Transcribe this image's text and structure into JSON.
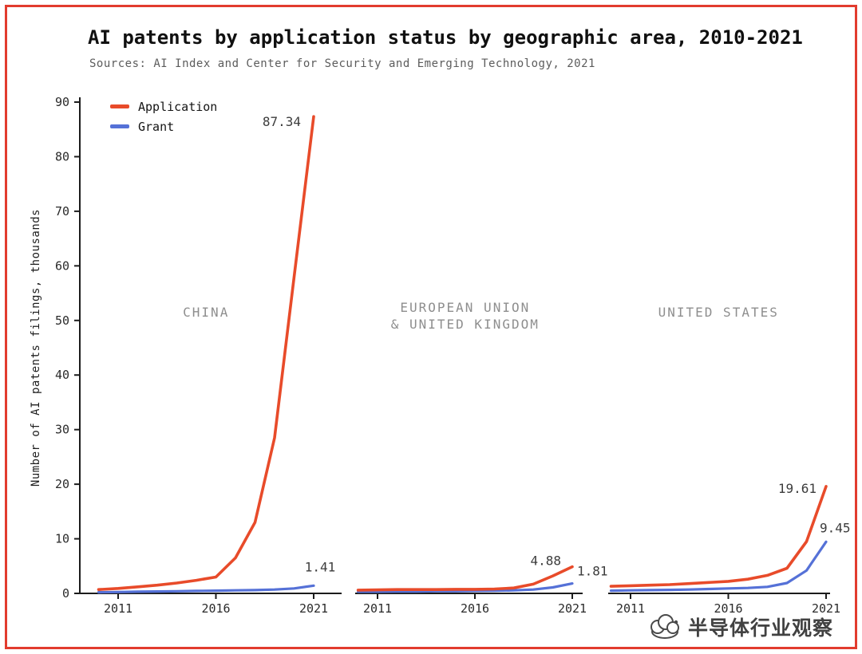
{
  "page": {
    "border_color": "#e23b2e"
  },
  "legend": {
    "items": [
      {
        "label": "Application",
        "color": "#e84b2a"
      },
      {
        "label": "Grant",
        "color": "#5571d7"
      }
    ]
  },
  "watermark": {
    "text": "半导体行业观察"
  },
  "chart_data": {
    "type": "line",
    "title": "AI patents by application status by geographic area, 2010-2021",
    "subtitle": "Sources: AI Index and Center for Security and Emerging Technology, 2021",
    "xlabel": "",
    "ylabel": "Number of AI patents filings, thousands",
    "ylim": [
      0,
      90
    ],
    "yticks": [
      0,
      10,
      20,
      30,
      40,
      50,
      60,
      70,
      80,
      90
    ],
    "x": [
      2010,
      2011,
      2012,
      2013,
      2014,
      2015,
      2016,
      2017,
      2018,
      2019,
      2020,
      2021
    ],
    "xticks": [
      2011,
      2016,
      2021
    ],
    "grid": false,
    "legend_position": "top-left",
    "panels": [
      {
        "title_lines": [
          "CHINA"
        ],
        "series": [
          {
            "name": "Application",
            "color": "#e84b2a",
            "values": [
              0.7,
              0.9,
              1.2,
              1.5,
              1.9,
              2.4,
              3.0,
              6.5,
              13.0,
              28.5,
              58.0,
              87.34
            ],
            "end_label": {
              "text": "87.34",
              "dx": -16,
              "dy": 12,
              "anchor": "end"
            }
          },
          {
            "name": "Grant",
            "color": "#5571d7",
            "values": [
              0.2,
              0.25,
              0.3,
              0.35,
              0.4,
              0.45,
              0.5,
              0.55,
              0.6,
              0.7,
              0.9,
              1.41
            ],
            "end_label": {
              "text": "1.41",
              "dx": 8,
              "dy": -18,
              "anchor": "middle"
            }
          }
        ]
      },
      {
        "title_lines": [
          "EUROPEAN UNION",
          "& UNITED KINGDOM"
        ],
        "series": [
          {
            "name": "Application",
            "color": "#e84b2a",
            "values": [
              0.6,
              0.65,
              0.7,
              0.7,
              0.7,
              0.75,
              0.75,
              0.8,
              1.0,
              1.7,
              3.2,
              4.88
            ],
            "end_label": {
              "text": "4.88",
              "dx": -14,
              "dy": -2,
              "anchor": "end"
            }
          },
          {
            "name": "Grant",
            "color": "#5571d7",
            "values": [
              0.3,
              0.3,
              0.35,
              0.35,
              0.4,
              0.4,
              0.45,
              0.5,
              0.55,
              0.7,
              1.1,
              1.81
            ],
            "end_label": {
              "text": "1.81",
              "dx": 6,
              "dy": -10,
              "anchor": "start"
            }
          }
        ]
      },
      {
        "title_lines": [
          "UNITED STATES"
        ],
        "series": [
          {
            "name": "Application",
            "color": "#e84b2a",
            "values": [
              1.3,
              1.4,
              1.5,
              1.6,
              1.8,
              2.0,
              2.2,
              2.6,
              3.3,
              4.6,
              9.5,
              19.61
            ],
            "end_label": {
              "text": "19.61",
              "dx": -12,
              "dy": 8,
              "anchor": "end"
            }
          },
          {
            "name": "Grant",
            "color": "#5571d7",
            "values": [
              0.5,
              0.55,
              0.6,
              0.65,
              0.7,
              0.8,
              0.9,
              1.0,
              1.2,
              1.9,
              4.2,
              9.45
            ],
            "end_label": {
              "text": "9.45",
              "dx": -8,
              "dy": -12,
              "anchor": "start"
            }
          }
        ]
      }
    ]
  }
}
